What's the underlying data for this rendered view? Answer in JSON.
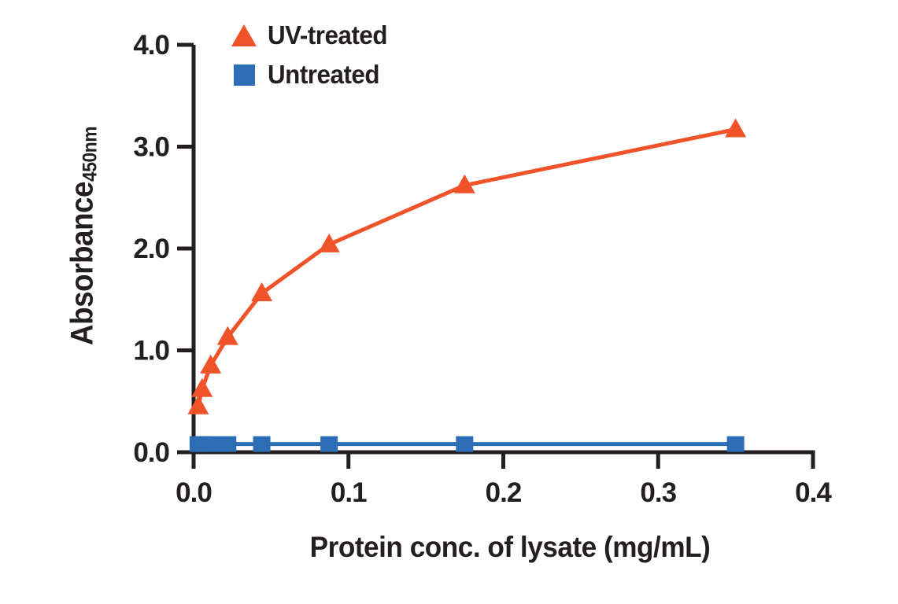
{
  "colors": {
    "axis": "#231F20",
    "text": "#231F20",
    "background": "#FFFFFF",
    "uv_treated": "#F0532A",
    "untreated": "#2D6DB5"
  },
  "legend": {
    "items": [
      {
        "label": "UV-treated",
        "marker": "triangle",
        "color": "#F0532A"
      },
      {
        "label": "Untreated",
        "marker": "square",
        "color": "#2D6DB5"
      }
    ]
  },
  "chart_data": {
    "type": "line",
    "title": "",
    "xlabel": "Protein conc. of lysate (mg/mL)",
    "ylabel": "Absorbance",
    "ylabel_subscript": "450nm",
    "xlim": [
      0,
      0.4
    ],
    "ylim": [
      0,
      4
    ],
    "grid": false,
    "legend_position": "top-left",
    "x_tick_values": [
      0,
      0.1,
      0.2,
      0.3,
      0.4
    ],
    "x_ticks": [
      "0.0",
      "0.1",
      "0.2",
      "0.3",
      "0.4"
    ],
    "y_tick_values": [
      0,
      1,
      2,
      3,
      4
    ],
    "y_ticks": [
      "0.0",
      "1.0",
      "2.0",
      "3.0",
      "4.0"
    ],
    "series": [
      {
        "name": "UV-treated",
        "marker": "triangle",
        "color": "#F0532A",
        "x": [
          0.003,
          0.0055,
          0.011,
          0.022,
          0.044,
          0.0875,
          0.175,
          0.35
        ],
        "y": [
          0.45,
          0.62,
          0.85,
          1.13,
          1.56,
          2.04,
          2.62,
          3.17
        ]
      },
      {
        "name": "Untreated",
        "marker": "square",
        "color": "#2D6DB5",
        "x": [
          0.003,
          0.0055,
          0.011,
          0.022,
          0.044,
          0.0875,
          0.175,
          0.35
        ],
        "y": [
          0.08,
          0.08,
          0.08,
          0.08,
          0.08,
          0.08,
          0.08,
          0.08
        ]
      }
    ]
  }
}
